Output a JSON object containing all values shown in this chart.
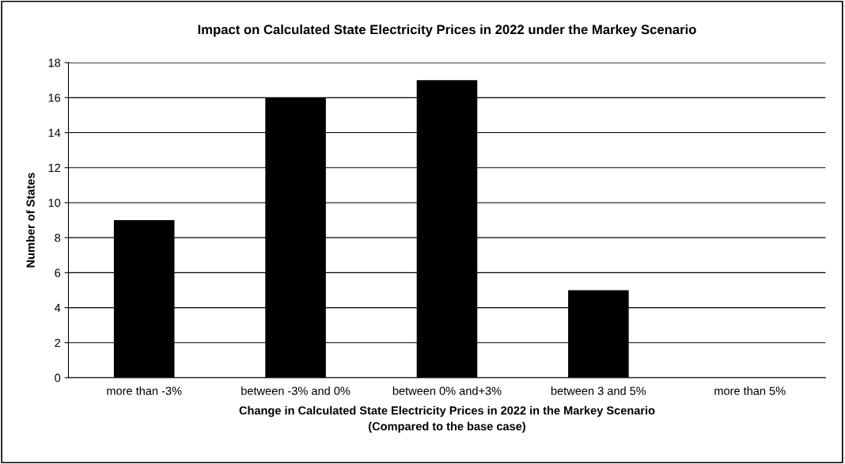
{
  "chart_data": {
    "type": "bar",
    "title": "Impact on Calculated State Electricity Prices in 2022 under the Markey Scenario",
    "xlabel": "Change in Calculated State Electricity Prices in 2022 in the Markey Scenario\n(Compared to the base case)",
    "ylabel": "Number of States",
    "categories": [
      "more than -3%",
      "between -3% and 0%",
      "between 0% and+3%",
      "between 3 and 5%",
      "more than 5%"
    ],
    "values": [
      9,
      16,
      17,
      5,
      0
    ],
    "color": "#000000",
    "ylim": [
      0,
      18
    ],
    "yticks": [
      0,
      2,
      4,
      6,
      8,
      10,
      12,
      14,
      16,
      18
    ],
    "grid": "y"
  }
}
